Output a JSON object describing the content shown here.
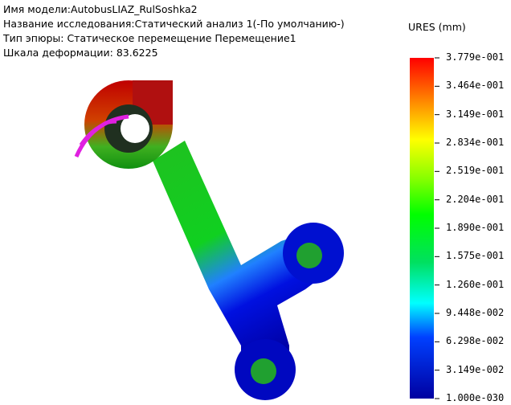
{
  "header": {
    "lines": [
      "Имя модели:AutobusLIAZ_RulSoshka2",
      "Название исследования:Статический анализ 1(-По умолчанию-)",
      "Тип эпюры: Статическое перемещение Перемещение1",
      "Шкала деформации: 83.6225"
    ]
  },
  "legend": {
    "title": "URES (mm)",
    "labels": [
      "3.779e-001",
      "3.464e-001",
      "3.149e-001",
      "2.834e-001",
      "2.519e-001",
      "2.204e-001",
      "1.890e-001",
      "1.575e-001",
      "1.260e-001",
      "9.448e-002",
      "6.298e-002",
      "3.149e-002",
      "1.000e-030"
    ]
  }
}
